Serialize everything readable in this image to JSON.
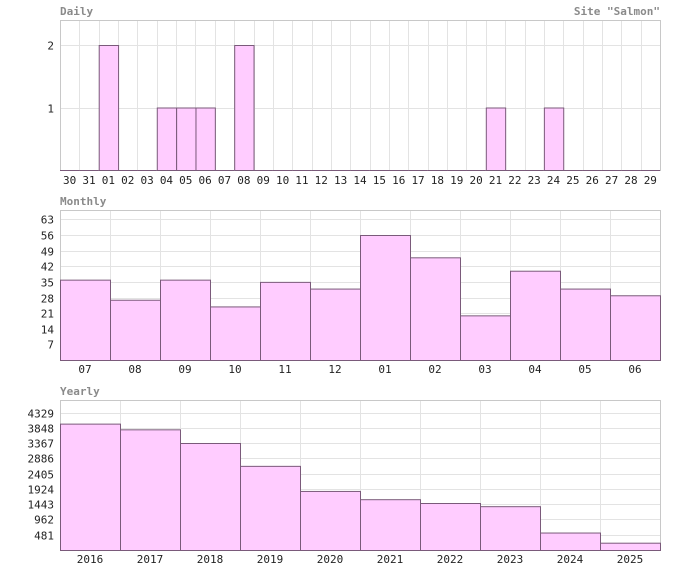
{
  "site_label": "Site \"Salmon\"",
  "chart_data": [
    {
      "type": "bar",
      "title": "Daily",
      "categories": [
        "30",
        "31",
        "01",
        "02",
        "03",
        "04",
        "05",
        "06",
        "07",
        "08",
        "09",
        "10",
        "11",
        "12",
        "13",
        "14",
        "15",
        "16",
        "17",
        "18",
        "19",
        "20",
        "21",
        "22",
        "23",
        "24",
        "25",
        "26",
        "27",
        "28",
        "29"
      ],
      "values": [
        0,
        0,
        2,
        0,
        0,
        1,
        1,
        1,
        0,
        2,
        0,
        0,
        0,
        0,
        0,
        0,
        0,
        0,
        0,
        0,
        0,
        0,
        1,
        0,
        0,
        1,
        0,
        0,
        0,
        0,
        0
      ],
      "yticks": [
        1,
        2
      ],
      "ylim": [
        0,
        2.4
      ],
      "grid": true
    },
    {
      "type": "bar",
      "title": "Monthly",
      "categories": [
        "07",
        "08",
        "09",
        "10",
        "11",
        "12",
        "01",
        "02",
        "03",
        "04",
        "05",
        "06"
      ],
      "values": [
        36,
        27,
        36,
        24,
        35,
        32,
        56,
        46,
        20,
        40,
        32,
        29
      ],
      "yticks": [
        7,
        14,
        21,
        28,
        35,
        42,
        49,
        56,
        63
      ],
      "ylim": [
        0,
        67.2
      ],
      "grid": true
    },
    {
      "type": "bar",
      "title": "Yearly",
      "categories": [
        "2016",
        "2017",
        "2018",
        "2019",
        "2020",
        "2021",
        "2022",
        "2023",
        "2024",
        "2025"
      ],
      "values": [
        3980,
        3800,
        3370,
        2650,
        1860,
        1600,
        1480,
        1380,
        550,
        230
      ],
      "yticks": [
        481,
        962,
        1443,
        1924,
        2405,
        2886,
        3367,
        3848,
        4329
      ],
      "ylim": [
        0,
        4724
      ],
      "grid": true
    }
  ]
}
